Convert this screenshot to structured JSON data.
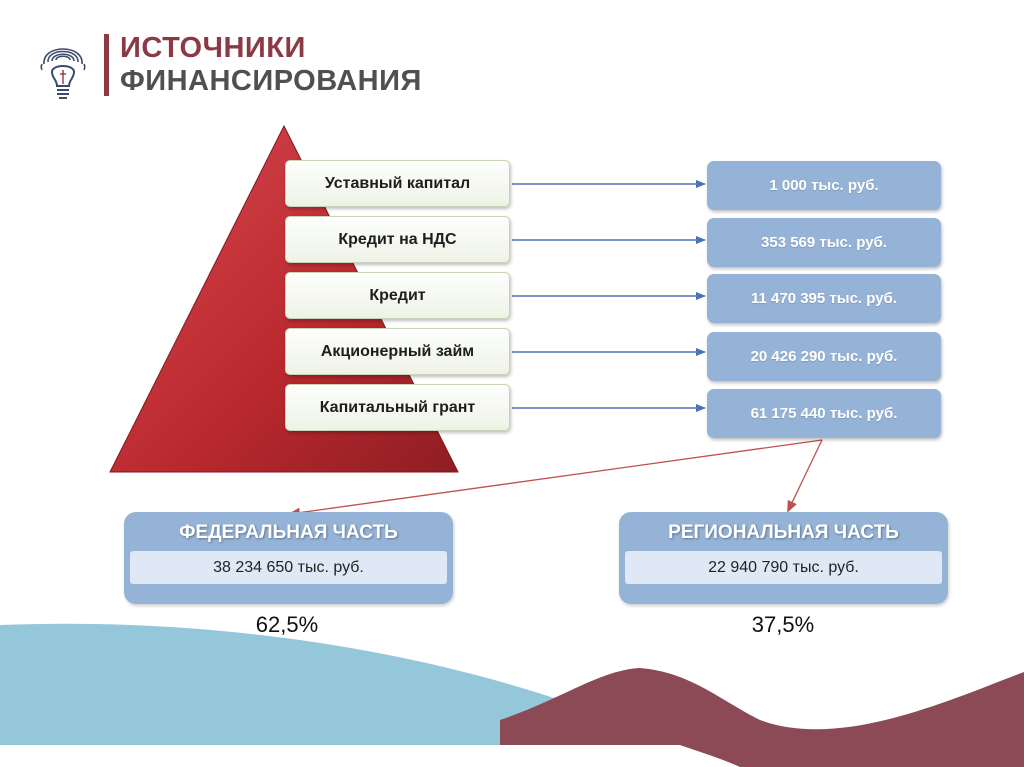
{
  "header": {
    "title_line1": "ИСТОЧНИКИ",
    "title_line2": "ФИНАНСИРОВАНИЯ",
    "logo_icon": "lightbulb-fingerprint-icon"
  },
  "sources": [
    {
      "label": "Уставный капитал",
      "value": "1 000 тыс. руб."
    },
    {
      "label": "Кредит на НДС",
      "value": "353 569 тыс. руб."
    },
    {
      "label": "Кредит",
      "value": "11 470 395 тыс. руб."
    },
    {
      "label": "Акционерный займ",
      "value": "20 426 290 тыс. руб."
    },
    {
      "label": "Капитальный грант",
      "value": "61 175 440 тыс. руб."
    }
  ],
  "parts": {
    "federal": {
      "title": "ФЕДЕРАЛЬНАЯ ЧАСТЬ",
      "value": "38 234 650 тыс. руб.",
      "percent": "62,5%"
    },
    "regional": {
      "title": "РЕГИОНАЛЬНАЯ ЧАСТЬ",
      "value": "22 940 790 тыс. руб.",
      "percent": "37,5%"
    }
  },
  "colors": {
    "accent": "#8b3a45",
    "pyramid": "#b8282e",
    "value_box": "#95b3d7",
    "arrow_blue": "#4a72b8",
    "arrow_red": "#c0504d",
    "wave_blue": "#8fc4d9",
    "wave_maroon": "#8b4a56"
  }
}
